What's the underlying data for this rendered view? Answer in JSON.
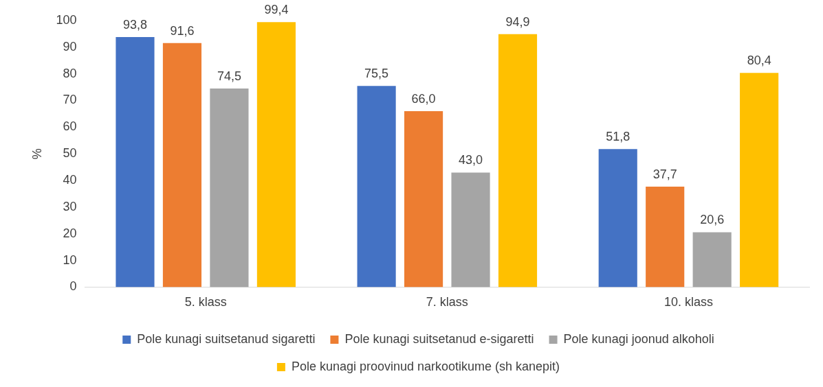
{
  "chart_data": {
    "type": "bar",
    "ylabel": "%",
    "categories": [
      "5. klass",
      "7. klass",
      "10. klass"
    ],
    "series": [
      {
        "name": "Pole kunagi suitsetanud sigaretti",
        "color": "#4472c4",
        "values": [
          93.8,
          75.5,
          51.8
        ],
        "value_labels": [
          "93,8",
          "75,5",
          "51,8"
        ]
      },
      {
        "name": "Pole kunagi suitsetanud e-sigaretti",
        "color": "#ed7d31",
        "values": [
          91.6,
          66.0,
          37.7
        ],
        "value_labels": [
          "91,6",
          "66,0",
          "37,7"
        ]
      },
      {
        "name": "Pole kunagi joonud alkoholi",
        "color": "#a5a5a5",
        "values": [
          74.5,
          43.0,
          20.6
        ],
        "value_labels": [
          "74,5",
          "43,0",
          "20,6"
        ]
      },
      {
        "name": "Pole kunagi proovinud narkootikume (sh kanepit)",
        "color": "#ffc000",
        "values": [
          99.4,
          94.9,
          80.4
        ],
        "value_labels": [
          "99,4",
          "94,9",
          "80,4"
        ]
      }
    ],
    "ylim": [
      0,
      100
    ],
    "yticks": [
      0,
      10,
      20,
      30,
      40,
      50,
      60,
      70,
      80,
      90,
      100
    ],
    "grid": false,
    "legend": "bottom"
  }
}
